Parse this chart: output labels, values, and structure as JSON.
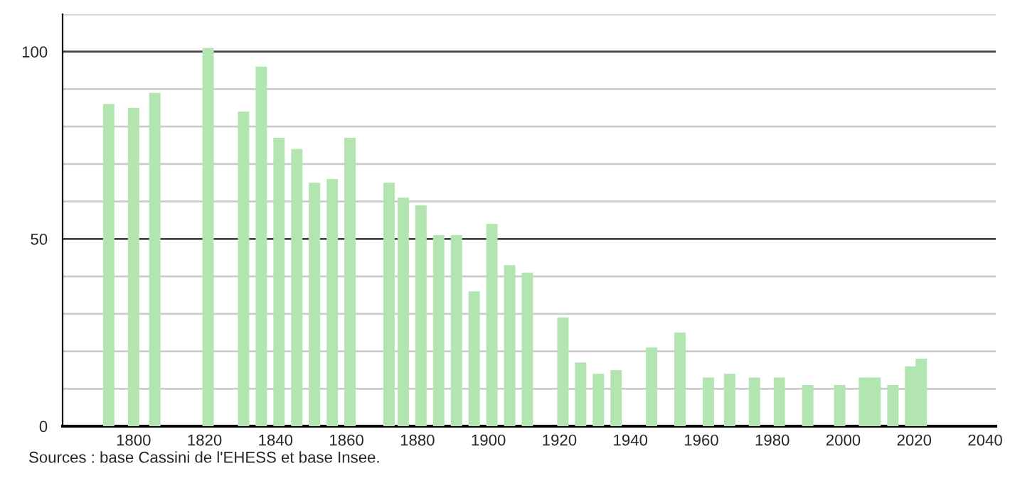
{
  "chart_data": {
    "type": "bar",
    "x": [
      1793,
      1800,
      1806,
      1821,
      1831,
      1836,
      1841,
      1846,
      1851,
      1856,
      1861,
      1872,
      1876,
      1881,
      1886,
      1891,
      1896,
      1901,
      1906,
      1911,
      1921,
      1926,
      1931,
      1936,
      1946,
      1954,
      1962,
      1968,
      1975,
      1982,
      1990,
      1999,
      2006,
      2009,
      2014,
      2019,
      2022
    ],
    "values": [
      86,
      85,
      89,
      101,
      84,
      96,
      77,
      74,
      65,
      66,
      77,
      65,
      61,
      59,
      51,
      51,
      36,
      54,
      43,
      41,
      29,
      17,
      14,
      15,
      21,
      25,
      13,
      14,
      13,
      13,
      11,
      11,
      13,
      13,
      11,
      16,
      18
    ],
    "color": "#b3e5b0",
    "xlim": [
      1780,
      2043
    ],
    "xticks": [
      1800,
      1820,
      1840,
      1860,
      1880,
      1900,
      1920,
      1940,
      1960,
      1980,
      2000,
      2020,
      2040
    ],
    "ylim": [
      0,
      110
    ],
    "yticks": [
      0,
      {
        "value": 10,
        "label": null
      },
      {
        "value": 20,
        "label": null
      },
      {
        "value": 30,
        "label": null
      },
      {
        "value": 40,
        "label": null
      },
      50,
      {
        "value": 60,
        "label": null
      },
      {
        "value": 70,
        "label": null
      },
      {
        "value": 80,
        "label": null
      },
      {
        "value": 90,
        "label": null
      },
      100,
      {
        "value": 110,
        "label": null
      }
    ],
    "grid": "y",
    "annotations": [
      "Sources : base Cassini de l'EHESS et base Insee."
    ]
  }
}
